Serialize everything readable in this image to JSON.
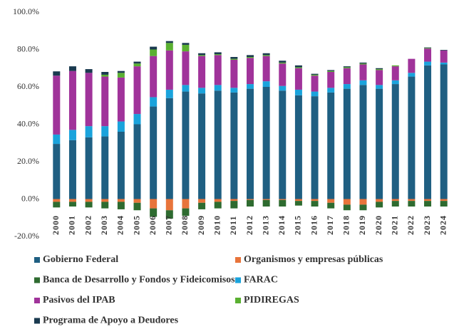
{
  "chart_data": {
    "type": "bar",
    "stacked": true,
    "categories": [
      "2000",
      "2001",
      "2002",
      "2003",
      "2004",
      "2005",
      "2006",
      "2007",
      "2008",
      "2009",
      "2010",
      "2011",
      "2012",
      "2013",
      "2014",
      "2015",
      "2016",
      "2017",
      "2018",
      "2019",
      "2020",
      "2021",
      "2022",
      "2023",
      "2024"
    ],
    "ylim": [
      -20,
      100
    ],
    "yticks": [
      {
        "value": -20,
        "label": "-20.0%"
      },
      {
        "value": 0,
        "label": "0.0%"
      },
      {
        "value": 20,
        "label": "20.0%"
      },
      {
        "value": 40,
        "label": "40.0%"
      },
      {
        "value": 60,
        "label": "60.0%"
      },
      {
        "value": 80,
        "label": "80.0%"
      },
      {
        "value": 100,
        "label": "100.0%"
      }
    ],
    "grid": false,
    "series": [
      {
        "name": "Gobierno Federal",
        "color": "#1f5f82",
        "values": [
          29.5,
          31.5,
          33,
          33.5,
          36,
          40,
          49.5,
          54,
          57.5,
          56.5,
          58,
          57,
          59,
          60,
          58,
          55.5,
          55,
          57,
          59,
          61,
          59,
          61.5,
          65.5,
          71.5,
          72
        ]
      },
      {
        "name": "Organismos y empresas públicas",
        "color": "#e8743b",
        "values": [
          -1.5,
          -1.5,
          -1.5,
          -1.5,
          -1.5,
          -2,
          -5,
          -6,
          -5,
          -2,
          -1.5,
          -1,
          -0.5,
          -0.5,
          -0.5,
          -1,
          -1,
          -2,
          -3,
          -3,
          -1.5,
          -1,
          -1,
          -1,
          -1
        ]
      },
      {
        "name": "Banca de Desarrollo y  Fondos y Fideicomisos",
        "color": "#2e6b30",
        "values": [
          -3,
          -2.5,
          -3,
          -3.5,
          -4,
          -4,
          -4.5,
          -4.5,
          -4,
          -3.5,
          -3.5,
          -4,
          -3.5,
          -3.5,
          -3.5,
          -2.5,
          -3,
          -3,
          -3,
          -3,
          -3,
          -3,
          -3,
          -3,
          -3
        ]
      },
      {
        "name": "FARAC",
        "color": "#1aa3dc",
        "values": [
          5,
          5.5,
          6,
          5.5,
          5.5,
          5.5,
          5,
          4.5,
          3.5,
          3,
          3,
          2.5,
          2.5,
          3,
          2.5,
          3,
          2.5,
          2.5,
          2.5,
          2.5,
          2,
          2,
          2,
          2,
          1
        ]
      },
      {
        "name": "Pasivos del IPAB",
        "color": "#a0339a",
        "values": [
          31.5,
          31.5,
          28.5,
          26.5,
          23.5,
          25.5,
          22,
          21,
          18,
          17,
          16,
          15,
          14,
          13.5,
          12,
          11.5,
          8.5,
          8.5,
          8.5,
          8.5,
          8,
          7.5,
          7.5,
          7,
          6.5
        ]
      },
      {
        "name": "PIDIREGAS",
        "color": "#5ab031",
        "values": [
          0,
          0,
          0,
          1,
          2.5,
          1.5,
          3.5,
          4,
          3.5,
          0.5,
          0.5,
          0.5,
          0.5,
          0.5,
          0.5,
          0.5,
          0.5,
          0.5,
          0.5,
          0.5,
          0.5,
          0.5,
          0,
          0.3,
          0
        ]
      },
      {
        "name": "Programa de Apoyo a Deudores",
        "color": "#1a3a4f",
        "values": [
          2.3,
          2.5,
          2,
          1.5,
          1,
          1,
          1.5,
          1,
          1,
          1,
          1,
          1,
          1,
          1,
          1,
          1,
          0.5,
          0.5,
          0.5,
          0.5,
          0.5,
          0,
          0,
          0.3,
          0.3
        ]
      }
    ]
  }
}
